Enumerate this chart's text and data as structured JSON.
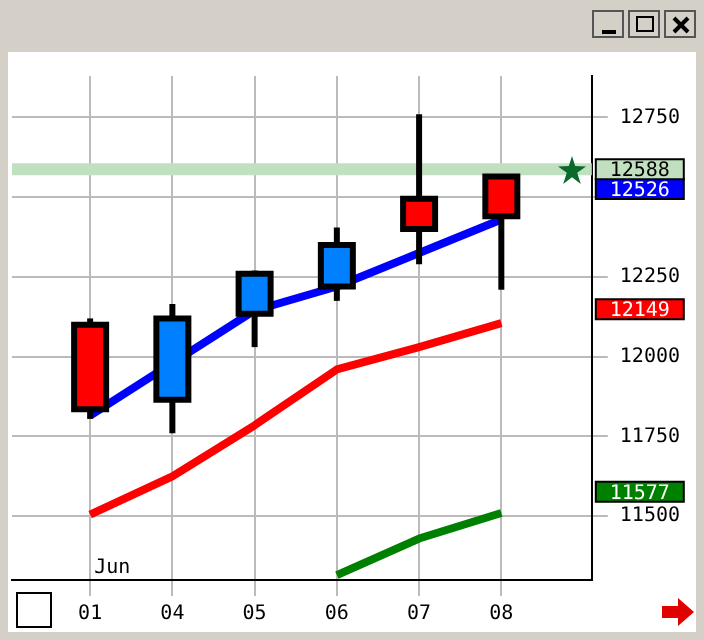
{
  "chart_data": {
    "type": "candlestick",
    "categories": [
      "01",
      "04",
      "05",
      "06",
      "07",
      "08"
    ],
    "ohlc": [
      [
        12100,
        12120,
        11805,
        11835
      ],
      [
        11865,
        12165,
        11760,
        12120
      ],
      [
        12135,
        12270,
        12030,
        12260
      ],
      [
        12220,
        12405,
        12175,
        12350
      ],
      [
        12495,
        12760,
        12290,
        12400
      ],
      [
        12565,
        12565,
        12210,
        12440
      ]
    ],
    "colors": [
      "#ff0000",
      "#0080ff",
      "#0080ff",
      "#0080ff",
      "#ff0000",
      "#ff0000"
    ],
    "series": [
      {
        "type": "line",
        "color": "#0000ff",
        "values": [
          11815,
          null,
          12145,
          12220,
          12325,
          12430
        ]
      },
      {
        "type": "line",
        "color": "#ff0000",
        "values": [
          11505,
          11625,
          11785,
          11960,
          12030,
          12105
        ]
      },
      {
        "type": "line",
        "color": "#008000",
        "values": [
          null,
          null,
          null,
          11315,
          11430,
          11510
        ]
      }
    ],
    "ylim": [
      11300,
      12880
    ],
    "yticks": [
      11500,
      11750,
      12000,
      12250,
      {
        "value": 12500,
        "label": null
      },
      12750
    ],
    "ref_lines": [
      {
        "axis": "y",
        "value": 12588,
        "label": "12588",
        "color": "#c0e0c0"
      }
    ],
    "annotations": [
      "Jun",
      "12526",
      "12149",
      "11577"
    ],
    "grid": true,
    "marker": "none"
  }
}
